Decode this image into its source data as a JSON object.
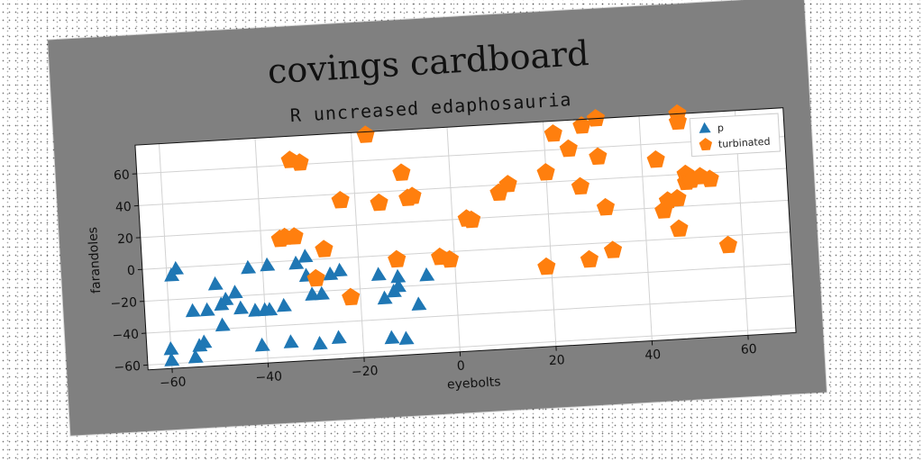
{
  "chart_data": {
    "type": "scatter",
    "title": "covings cardboard",
    "subtitle": "R uncreased edaphosauria",
    "xlabel": "eyebolts",
    "ylabel": "farandoles",
    "xlim": [
      -65,
      70
    ],
    "ylim": [
      -63,
      78
    ],
    "xticks": [
      -60,
      -40,
      -20,
      0,
      20,
      40,
      60
    ],
    "yticks": [
      -60,
      -40,
      -20,
      0,
      20,
      40,
      60
    ],
    "xtick_labels": [
      "−60",
      "−40",
      "−20",
      "0",
      "20",
      "40",
      "60"
    ],
    "ytick_labels": [
      "−60",
      "−40",
      "−20",
      "0",
      "20",
      "40",
      "60"
    ],
    "grid": true,
    "legend_position": "top-right",
    "series": [
      {
        "name": "p",
        "marker": "triangle",
        "color": "#1f77b4",
        "points": [
          [
            -60,
            -58
          ],
          [
            -60,
            -51
          ],
          [
            -59,
            -5
          ],
          [
            -58,
            -1
          ],
          [
            -55,
            -57
          ],
          [
            -55,
            -28
          ],
          [
            -54,
            -50
          ],
          [
            -53,
            -48
          ],
          [
            -52,
            -28
          ],
          [
            -50,
            -12
          ],
          [
            -49,
            -25
          ],
          [
            -49,
            -38
          ],
          [
            -48,
            -22
          ],
          [
            -46,
            -18
          ],
          [
            -45,
            -28
          ],
          [
            -43,
            -3
          ],
          [
            -42,
            -30
          ],
          [
            -41,
            -52
          ],
          [
            -40,
            -30
          ],
          [
            -39,
            -2
          ],
          [
            -39,
            -30
          ],
          [
            -36,
            -28
          ],
          [
            -35,
            -51
          ],
          [
            -33,
            -2
          ],
          [
            -31,
            -10
          ],
          [
            -31,
            2
          ],
          [
            -30,
            -22
          ],
          [
            -29,
            -53
          ],
          [
            -28,
            -22
          ],
          [
            -26,
            -10
          ],
          [
            -25,
            -50
          ],
          [
            -24,
            -8
          ],
          [
            -16,
            -12
          ],
          [
            -15,
            -27
          ],
          [
            -14,
            -52
          ],
          [
            -13,
            -23
          ],
          [
            -12,
            -20
          ],
          [
            -12,
            -14
          ],
          [
            -11,
            -53
          ],
          [
            -8,
            -32
          ],
          [
            -6,
            -14
          ]
        ]
      },
      {
        "name": "turbinated",
        "marker": "pentagon",
        "color": "#ff7f0e",
        "points": [
          [
            -36,
            14
          ],
          [
            -35,
            15
          ],
          [
            -33,
            15
          ],
          [
            -33,
            63
          ],
          [
            -31,
            61
          ],
          [
            -29,
            -12
          ],
          [
            -27,
            6
          ],
          [
            -23,
            36
          ],
          [
            -22,
            -25
          ],
          [
            -17,
            76
          ],
          [
            -15,
            33
          ],
          [
            -12,
            -3
          ],
          [
            -10,
            51
          ],
          [
            -9,
            35
          ],
          [
            -8,
            36
          ],
          [
            -3,
            -3
          ],
          [
            -1,
            -5
          ],
          [
            3,
            20
          ],
          [
            4,
            19
          ],
          [
            10,
            35
          ],
          [
            12,
            40
          ],
          [
            19,
            -13
          ],
          [
            20,
            46
          ],
          [
            22,
            70
          ],
          [
            25,
            60
          ],
          [
            27,
            36
          ],
          [
            28,
            -10
          ],
          [
            28,
            74
          ],
          [
            31,
            78
          ],
          [
            31,
            54
          ],
          [
            32,
            22
          ],
          [
            33,
            -5
          ],
          [
            43,
            50
          ],
          [
            44,
            18
          ],
          [
            45,
            24
          ],
          [
            47,
            25
          ],
          [
            47,
            6
          ],
          [
            48,
            78
          ],
          [
            48,
            73
          ],
          [
            49,
            40
          ],
          [
            49,
            35
          ],
          [
            50,
            36
          ],
          [
            52,
            38
          ],
          [
            54,
            36
          ],
          [
            57,
            -6
          ],
          [
            59,
            56
          ]
        ]
      }
    ]
  }
}
